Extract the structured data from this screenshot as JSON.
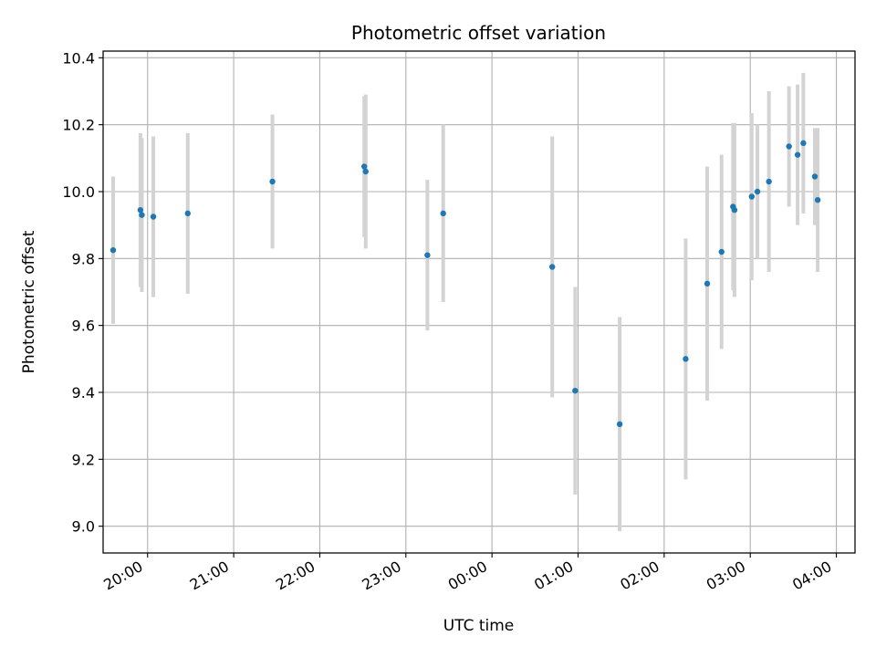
{
  "chart_data": {
    "type": "scatter",
    "title": "Photometric offset variation",
    "xlabel": "UTC time",
    "ylabel": "Photometric offset",
    "x_ticks": [
      "20:00",
      "21:00",
      "22:00",
      "23:00",
      "00:00",
      "01:00",
      "02:00",
      "03:00",
      "04:00"
    ],
    "y_ticks": [
      "9.0",
      "9.2",
      "9.4",
      "9.6",
      "9.8",
      "10.0",
      "10.2",
      "10.4"
    ],
    "xlim": [
      "19:29",
      "04:13"
    ],
    "ylim": [
      8.92,
      10.42
    ],
    "grid": true,
    "colors": {
      "point": "#1f77b4",
      "errorbar": "#d3d3d3",
      "grid": "#b0b0b0",
      "axes": "#000000"
    },
    "points": [
      {
        "x": "19:36",
        "y": 9.825,
        "err": 0.22
      },
      {
        "x": "19:55",
        "y": 9.945,
        "err": 0.23
      },
      {
        "x": "19:56",
        "y": 9.93,
        "err": 0.23
      },
      {
        "x": "20:04",
        "y": 9.925,
        "err": 0.24
      },
      {
        "x": "20:28",
        "y": 9.935,
        "err": 0.24
      },
      {
        "x": "21:27",
        "y": 10.03,
        "err": 0.2
      },
      {
        "x": "22:31",
        "y": 10.075,
        "err": 0.21
      },
      {
        "x": "22:32",
        "y": 10.06,
        "err": 0.23
      },
      {
        "x": "23:15",
        "y": 9.81,
        "err": 0.225
      },
      {
        "x": "23:26",
        "y": 9.935,
        "err": 0.265
      },
      {
        "x": "00:42",
        "y": 9.775,
        "err": 0.39
      },
      {
        "x": "00:58",
        "y": 9.405,
        "err": 0.31
      },
      {
        "x": "01:29",
        "y": 9.305,
        "err": 0.32
      },
      {
        "x": "02:15",
        "y": 9.5,
        "err": 0.36
      },
      {
        "x": "02:30",
        "y": 9.725,
        "err": 0.35
      },
      {
        "x": "02:40",
        "y": 9.82,
        "err": 0.29
      },
      {
        "x": "02:48",
        "y": 9.955,
        "err": 0.25
      },
      {
        "x": "02:49",
        "y": 9.945,
        "err": 0.26
      },
      {
        "x": "03:01",
        "y": 9.985,
        "err": 0.25
      },
      {
        "x": "03:05",
        "y": 10.0,
        "err": 0.2
      },
      {
        "x": "03:13",
        "y": 10.03,
        "err": 0.27
      },
      {
        "x": "03:27",
        "y": 10.135,
        "err": 0.18
      },
      {
        "x": "03:33",
        "y": 10.11,
        "err": 0.21
      },
      {
        "x": "03:37",
        "y": 10.145,
        "err": 0.21
      },
      {
        "x": "03:45",
        "y": 10.045,
        "err": 0.145
      },
      {
        "x": "03:47",
        "y": 9.975,
        "err": 0.215
      }
    ]
  }
}
